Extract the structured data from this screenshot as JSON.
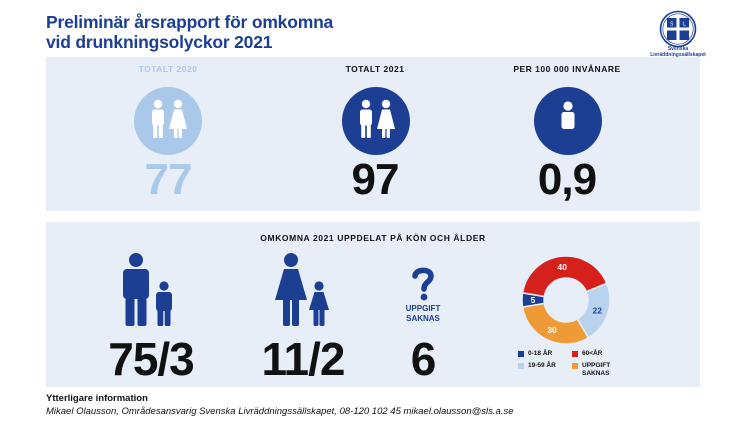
{
  "title_line1": "Preliminär årsrapport för omkomna",
  "title_line2": "vid drunkningsolyckor 2021",
  "logo_text": "Svenska Livräddningssällskapet",
  "logo_shield_letters": [
    "S",
    "L",
    "S"
  ],
  "colors": {
    "navy": "#1c3f94",
    "light_blue": "#a9c8ea",
    "red": "#d6201c",
    "orange": "#ee9b36",
    "pale_blue": "#b9d3ef",
    "panel": "#e8eef8"
  },
  "stats": [
    {
      "label": "TOTALT 2020",
      "value": "77",
      "icon": "man-woman-icon"
    },
    {
      "label": "TOTALT 2021",
      "value": "97",
      "icon": "man-woman-icon"
    },
    {
      "label": "PER 100 000 INVÅNARE",
      "value": "0,9",
      "icon": "person-icon"
    }
  ],
  "breakdown": {
    "title": "OMKOMNA 2021 UPPDELAT PÅ KÖN OCH ÅLDER",
    "men": "75/3",
    "women": "11/2",
    "missing": "6",
    "missing_label_line1": "UPPGIFT",
    "missing_label_line2": "SAKNAS"
  },
  "chart_data": {
    "type": "pie",
    "donut": true,
    "values": [
      5,
      40,
      22,
      30
    ],
    "labels": [
      "0-18 ÅR",
      "60<ÅR",
      "19-59 ÅR",
      "UPPGIFT SAKNAS"
    ],
    "data_labels": [
      "5",
      "40",
      "22",
      "30"
    ],
    "colors": [
      "#1c3f94",
      "#d6201c",
      "#b9d3ef",
      "#ee9b36"
    ],
    "legend": [
      {
        "label": "0-18 ÅR",
        "color": "#1c3f94"
      },
      {
        "label": "60<ÅR",
        "color": "#d6201c"
      },
      {
        "label": "19-59 ÅR",
        "color": "#b9d3ef"
      },
      {
        "label": "UPPGIFT SAKNAS",
        "color": "#ee9b36"
      }
    ]
  },
  "footer": {
    "heading": "Ytterligare information",
    "contact": "Mikael Olausson, Områdesansvarig Svenska Livräddningssällskapet, 08-120 102 45 mikael.olausson@sls.a.se"
  }
}
